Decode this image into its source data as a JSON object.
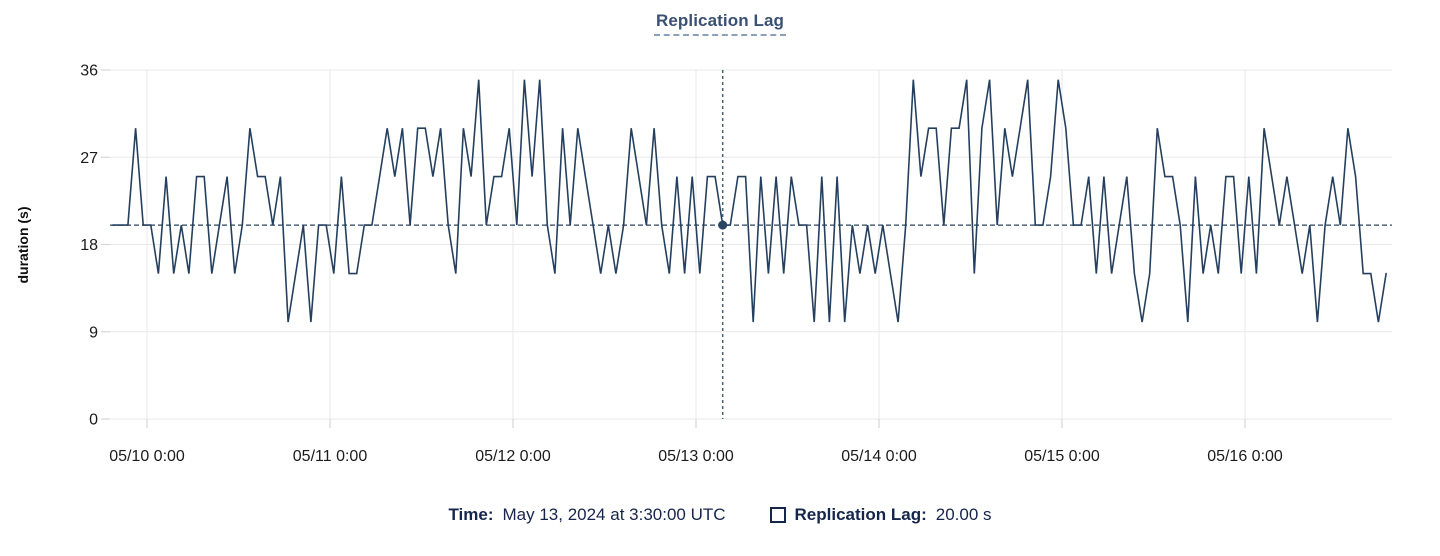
{
  "title": "Replication Lag",
  "colors": {
    "line": "#25405f",
    "title_text": "#3a5173",
    "title_underline": "#8ba0bb",
    "grid": "#e8e8e8",
    "tick_mark": "#d6d6d6",
    "axis_text": "#1b1b1b",
    "axis_title_text": "#0f0f0f",
    "crosshair_vertical": "#44646f",
    "crosshair_horizontal": "#25405f",
    "crosshair_dot": "#2a4563",
    "footer_text": "#16254c",
    "background": "#ffffff"
  },
  "footer": {
    "time_label": "Time:",
    "time_value": "May 13, 2024 at 3:30:00 UTC",
    "series_label": "Replication Lag:",
    "series_value": "20.00 s"
  },
  "chart_data": {
    "type": "line",
    "title": "Replication Lag",
    "xlabel": "",
    "ylabel": "duration (s)",
    "ylim": [
      0,
      36
    ],
    "y_ticks": [
      0,
      9,
      18,
      27,
      36
    ],
    "x_tick_labels": [
      "05/10 0:00",
      "05/11 0:00",
      "05/12 0:00",
      "05/13 0:00",
      "05/14 0:00",
      "05/15 0:00",
      "05/16 0:00"
    ],
    "x_start": "2024-05-09 19:30 UTC",
    "x_step_hours": 1,
    "unit": "s",
    "grid": "on",
    "legend_position": "bottom",
    "series": [
      {
        "name": "Replication Lag",
        "values": [
          20,
          20,
          20,
          30,
          20,
          20,
          15,
          25,
          15,
          20,
          15,
          25,
          25,
          15,
          20,
          25,
          15,
          20,
          30,
          25,
          25,
          20,
          25,
          10,
          15,
          20,
          10,
          20,
          20,
          15,
          25,
          15,
          15,
          20,
          20,
          25,
          30,
          25,
          30,
          20,
          30,
          30,
          25,
          30,
          20,
          15,
          30,
          25,
          35,
          20,
          25,
          25,
          30,
          20,
          35,
          25,
          35,
          20,
          15,
          30,
          20,
          30,
          25,
          20,
          15,
          20,
          15,
          20,
          30,
          25,
          20,
          30,
          20,
          15,
          25,
          15,
          25,
          15,
          25,
          25,
          20,
          20,
          25,
          25,
          10,
          25,
          15,
          25,
          15,
          25,
          20,
          20,
          10,
          25,
          10,
          25,
          10,
          20,
          15,
          20,
          15,
          20,
          15,
          10,
          20,
          35,
          25,
          30,
          30,
          20,
          30,
          30,
          35,
          15,
          30,
          35,
          20,
          30,
          25,
          30,
          35,
          20,
          20,
          25,
          35,
          30,
          20,
          20,
          25,
          15,
          25,
          15,
          20,
          25,
          15,
          10,
          15,
          30,
          25,
          25,
          20,
          10,
          25,
          15,
          20,
          15,
          25,
          25,
          15,
          25,
          15,
          30,
          25,
          20,
          25,
          20,
          15,
          20,
          10,
          20,
          25,
          20,
          30,
          25,
          15,
          15,
          10,
          15
        ]
      }
    ],
    "crosshair": {
      "index": 80,
      "time": "May 13, 2024 at 3:30:00 UTC",
      "value": 20.0,
      "value_label": "20.00 s"
    }
  }
}
